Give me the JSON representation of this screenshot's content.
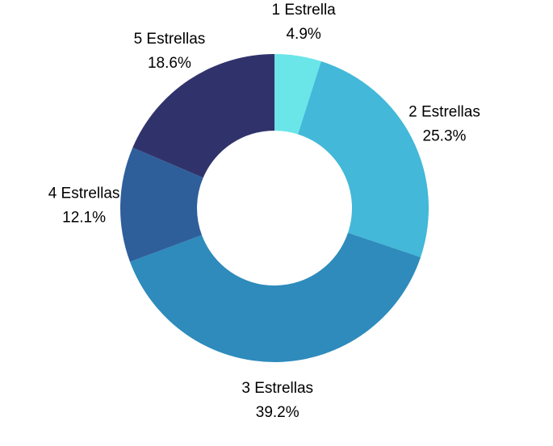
{
  "chart_data": {
    "type": "pie",
    "donut": true,
    "start_angle_deg": 90,
    "direction": "clockwise",
    "slices": [
      {
        "label": "1 Estrella",
        "value": 4.9,
        "value_label": "4.9%",
        "color": "#6ae5e8"
      },
      {
        "label": "2 Estrellas",
        "value": 25.3,
        "value_label": "25.3%",
        "color": "#43b8d8"
      },
      {
        "label": "3 Estrellas",
        "value": 39.2,
        "value_label": "39.2%",
        "color": "#2e8bbc"
      },
      {
        "label": "4 Estrellas",
        "value": 12.1,
        "value_label": "12.1%",
        "color": "#2e5f9b"
      },
      {
        "label": "5 Estrellas",
        "value": 18.6,
        "value_label": "18.6%",
        "color": "#30336b"
      }
    ]
  }
}
